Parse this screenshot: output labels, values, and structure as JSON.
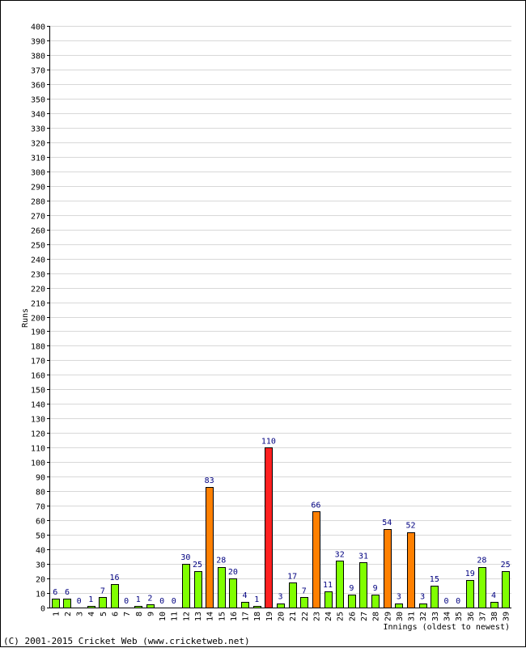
{
  "chart_data": {
    "type": "bar",
    "categories": [
      "1",
      "2",
      "3",
      "4",
      "5",
      "6",
      "7",
      "8",
      "9",
      "10",
      "11",
      "12",
      "13",
      "14",
      "15",
      "16",
      "17",
      "18",
      "19",
      "20",
      "21",
      "22",
      "23",
      "24",
      "25",
      "26",
      "27",
      "28",
      "29",
      "30",
      "31",
      "32",
      "33",
      "34",
      "35",
      "36",
      "37",
      "38",
      "39"
    ],
    "values": [
      6,
      6,
      0,
      1,
      7,
      16,
      0,
      1,
      2,
      0,
      0,
      30,
      25,
      83,
      28,
      20,
      4,
      1,
      110,
      3,
      17,
      7,
      66,
      11,
      32,
      9,
      31,
      9,
      54,
      3,
      52,
      3,
      15,
      0,
      0,
      19,
      28,
      4,
      25
    ],
    "ylabel": "Runs",
    "xlabel": "Innings (oldest to newest)",
    "ylim": [
      0,
      400
    ],
    "ytick_step": 10,
    "grid": true,
    "legend": "none",
    "bar_colors": {
      "under_50": "#80ff00",
      "fifty": "#ff8000",
      "hundred": "#ff2020"
    }
  },
  "footer": {
    "copyright": "(C) 2001-2015 Cricket Web (www.cricketweb.net)"
  }
}
